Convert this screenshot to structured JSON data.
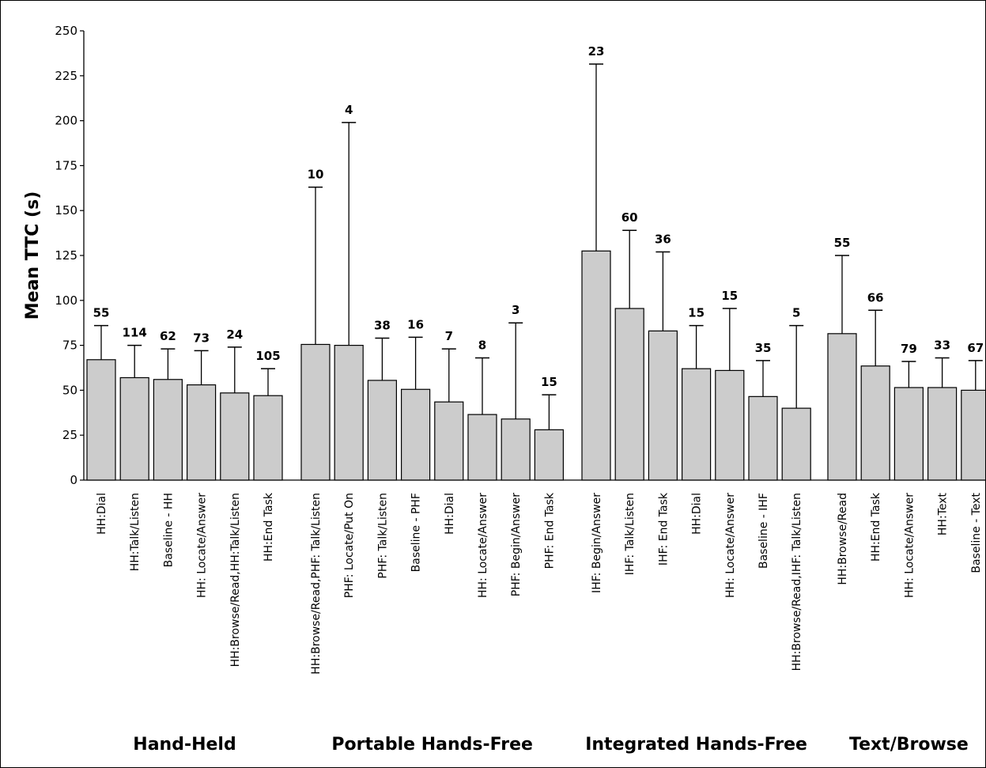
{
  "chart_data": {
    "type": "bar",
    "ylabel": "Mean TTC (s)",
    "xlabel": "",
    "ylim": [
      0,
      250
    ],
    "yticks": [
      0,
      25,
      50,
      75,
      100,
      125,
      150,
      175,
      200,
      225,
      250
    ],
    "error_bars": true,
    "grid": false,
    "legend": "none",
    "bar_color": "#cccccc",
    "groups": [
      {
        "name": "Hand-Held",
        "bars": [
          {
            "label": "HH:Dial",
            "value": 67,
            "error_upper": 86,
            "n": "55"
          },
          {
            "label": "HH:Talk/Listen",
            "value": 57,
            "error_upper": 75,
            "n": "114"
          },
          {
            "label": "Baseline - HH",
            "value": 56,
            "error_upper": 73,
            "n": "62"
          },
          {
            "label": "HH: Locate/Answer",
            "value": 53,
            "error_upper": 72,
            "n": "73"
          },
          {
            "label": "HH:Browse/Read,HH:Talk/Listen",
            "value": 48.5,
            "error_upper": 74,
            "n": "24"
          },
          {
            "label": "HH:End Task",
            "value": 47,
            "error_upper": 62,
            "n": "105"
          }
        ]
      },
      {
        "name": "Portable Hands-Free",
        "bars": [
          {
            "label": "HH:Browse/Read,PHF: Talk/Listen",
            "value": 75.5,
            "error_upper": 163,
            "n": "10"
          },
          {
            "label": "PHF: Locate/Put On",
            "value": 75,
            "error_upper": 199,
            "n": "4"
          },
          {
            "label": "PHF: Talk/Listen",
            "value": 55.5,
            "error_upper": 79,
            "n": "38"
          },
          {
            "label": "Baseline - PHF",
            "value": 50.5,
            "error_upper": 79.5,
            "n": "16"
          },
          {
            "label": "HH:Dial",
            "value": 43.5,
            "error_upper": 73,
            "n": "7"
          },
          {
            "label": "HH: Locate/Answer",
            "value": 36.5,
            "error_upper": 68,
            "n": "8"
          },
          {
            "label": "PHF: Begin/Answer",
            "value": 34,
            "error_upper": 87.5,
            "n": "3"
          },
          {
            "label": "PHF: End Task",
            "value": 28,
            "error_upper": 47.5,
            "n": "15"
          }
        ]
      },
      {
        "name": "Integrated Hands-Free",
        "bars": [
          {
            "label": "IHF: Begin/Answer",
            "value": 127.5,
            "error_upper": 231.5,
            "n": "23"
          },
          {
            "label": "IHF: Talk/Listen",
            "value": 95.5,
            "error_upper": 139,
            "n": "60"
          },
          {
            "label": "IHF: End Task",
            "value": 83,
            "error_upper": 127,
            "n": "36"
          },
          {
            "label": "HH:Dial",
            "value": 62,
            "error_upper": 86,
            "n": "15"
          },
          {
            "label": "HH: Locate/Answer",
            "value": 61,
            "error_upper": 95.5,
            "n": "15"
          },
          {
            "label": "Baseline - IHF",
            "value": 46.5,
            "error_upper": 66.5,
            "n": "35"
          },
          {
            "label": "HH:Browse/Read,IHF: Talk/Listen",
            "value": 40,
            "error_upper": 86,
            "n": "5"
          }
        ]
      },
      {
        "name": "Text/Browse",
        "bars": [
          {
            "label": "HH:Browse/Read",
            "value": 81.5,
            "error_upper": 125,
            "n": "55"
          },
          {
            "label": "HH:End Task",
            "value": 63.5,
            "error_upper": 94.5,
            "n": "66"
          },
          {
            "label": "HH: Locate/Answer",
            "value": 51.5,
            "error_upper": 66,
            "n": "79"
          },
          {
            "label": "HH:Text",
            "value": 51.5,
            "error_upper": 68,
            "n": "33"
          },
          {
            "label": "Baseline - Text",
            "value": 50,
            "error_upper": 66.5,
            "n": "67"
          }
        ]
      }
    ]
  }
}
